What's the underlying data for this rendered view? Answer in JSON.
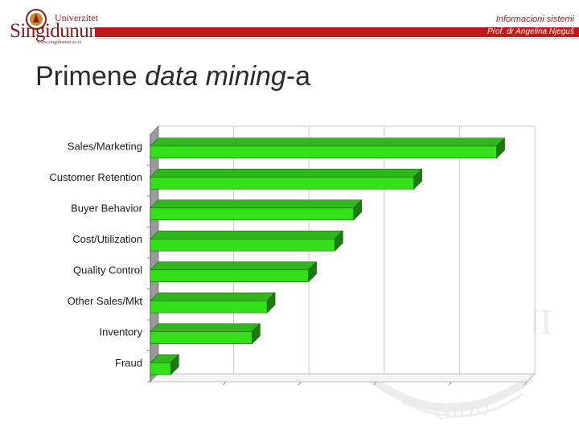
{
  "header": {
    "logo_top": "Univerzitet",
    "logo_name": "Singidunum",
    "logo_url": "www.singidunum.ac.rs",
    "course": "Informacioni sistemi",
    "professor": "Prof. dr Angelina Njeguš"
  },
  "slide": {
    "title_prefix": "Primene ",
    "title_italic": "data mining",
    "title_suffix": "-a"
  },
  "colors": {
    "brand": "#c01818",
    "bar_front": "#33e01a",
    "bar_top": "#2fb81c",
    "bar_side": "#1e7a10"
  },
  "chart_data": {
    "type": "bar",
    "orientation": "horizontal",
    "categories": [
      "Sales/Marketing",
      "Customer Retention",
      "Buyer Behavior",
      "Cost/Utilization",
      "Quality Control",
      "Other Sales/Mkt",
      "Inventory",
      "Fraud"
    ],
    "values": [
      46,
      35,
      27,
      24.5,
      21,
      15.5,
      13.5,
      2.7
    ],
    "xlim": [
      0,
      50
    ],
    "grid": true,
    "three_d": true,
    "legend": "none"
  }
}
